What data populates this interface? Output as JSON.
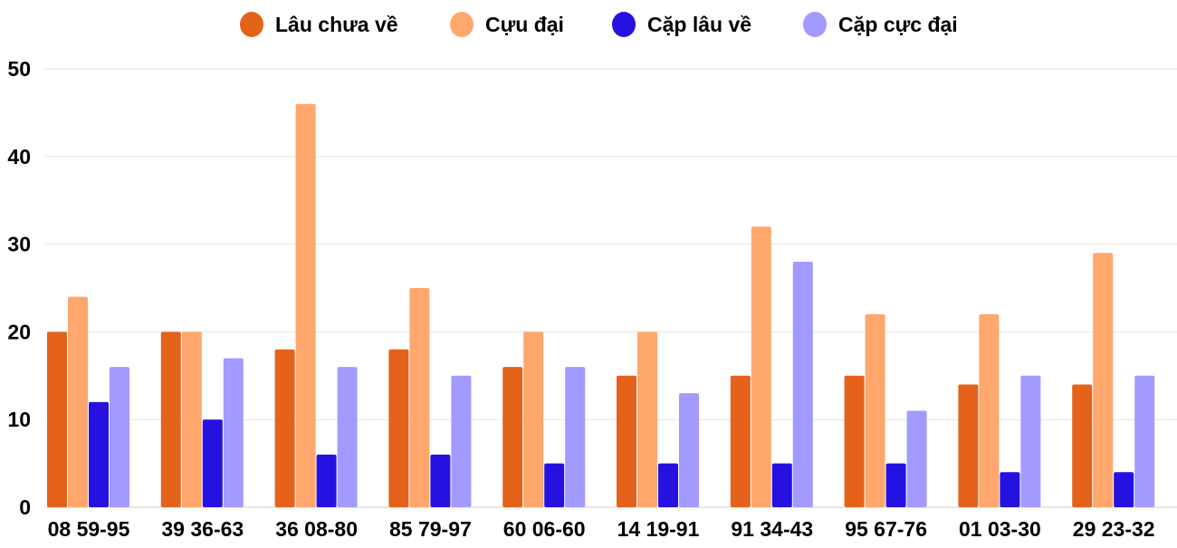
{
  "chart_data": {
    "type": "bar",
    "title": "",
    "xlabel": "",
    "ylabel": "",
    "ylim": [
      0,
      50
    ],
    "yticks": [
      0,
      10,
      20,
      30,
      40,
      50
    ],
    "grid": true,
    "legend_position": "top",
    "categories": [
      "08 59-95",
      "39 36-63",
      "36 08-80",
      "85 79-97",
      "60 06-60",
      "14 19-91",
      "91 34-43",
      "95 67-76",
      "01 03-30",
      "29 23-32"
    ],
    "series": [
      {
        "name": "Lâu chưa về",
        "color": "#e4621a",
        "values": [
          20,
          20,
          18,
          18,
          16,
          15,
          15,
          15,
          14,
          14
        ]
      },
      {
        "name": "Cựu đại",
        "color": "#ffa76c",
        "values": [
          24,
          20,
          46,
          25,
          20,
          20,
          32,
          22,
          22,
          29
        ]
      },
      {
        "name": "Cặp lâu về",
        "color": "#2612e0",
        "values": [
          12,
          10,
          6,
          6,
          5,
          5,
          5,
          5,
          4,
          4
        ]
      },
      {
        "name": "Cặp cực đại",
        "color": "#a29aff",
        "values": [
          16,
          17,
          16,
          15,
          16,
          13,
          28,
          11,
          15,
          15
        ]
      }
    ]
  }
}
